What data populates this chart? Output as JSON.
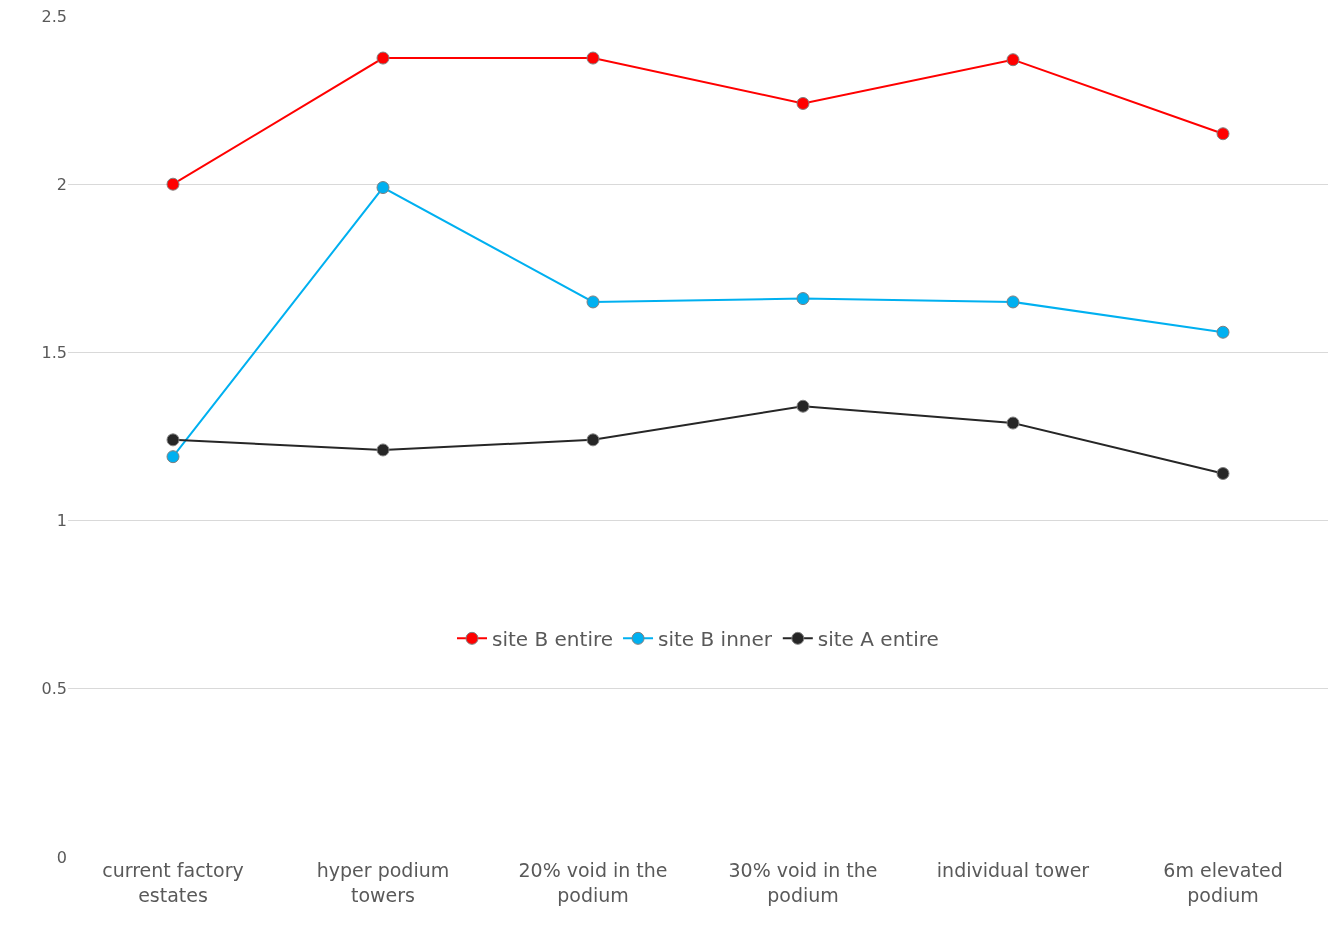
{
  "chart_data": {
    "type": "line",
    "categories": [
      "current factory estates",
      "hyper podium towers",
      "20% void in the podium",
      "30% void in the podium",
      "individual tower",
      "6m elevated podium"
    ],
    "series": [
      {
        "name": "site B entire",
        "color": "#ff0000",
        "values": [
          2.0,
          2.375,
          2.375,
          2.24,
          2.37,
          2.15
        ]
      },
      {
        "name": "site B inner",
        "color": "#00b0f0",
        "values": [
          1.19,
          1.99,
          1.65,
          1.66,
          1.65,
          1.56
        ]
      },
      {
        "name": "site A entire",
        "color": "#262626",
        "values": [
          1.24,
          1.21,
          1.24,
          1.34,
          1.29,
          1.14
        ]
      }
    ],
    "ylim": [
      0,
      2.5
    ],
    "yticks": [
      0,
      0.5,
      1,
      1.5,
      2,
      2.5
    ],
    "grid": "y",
    "legend": "center",
    "marker": "circle",
    "line_style": "solid"
  }
}
